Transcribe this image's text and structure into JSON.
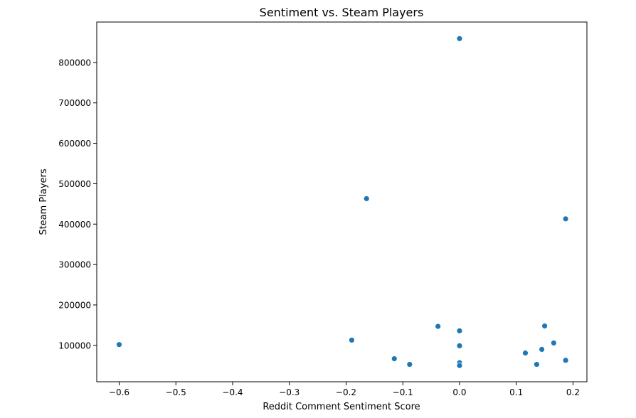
{
  "chart_data": {
    "type": "scatter",
    "title": "Sentiment vs. Steam Players",
    "xlabel": "Reddit Comment Sentiment Score",
    "ylabel": "Steam Players",
    "xlim": [
      -0.6395,
      0.2245
    ],
    "ylim": [
      10000,
      900000
    ],
    "xticks": [
      -0.6,
      -0.5,
      -0.4,
      -0.3,
      -0.2,
      -0.1,
      0.0,
      0.1,
      0.2
    ],
    "xtick_labels": [
      "−0.6",
      "−0.5",
      "−0.4",
      "−0.3",
      "−0.2",
      "−0.1",
      "0.0",
      "0.1",
      "0.2"
    ],
    "yticks": [
      100000,
      200000,
      300000,
      400000,
      500000,
      600000,
      700000,
      800000
    ],
    "ytick_labels": [
      "100000",
      "200000",
      "300000",
      "400000",
      "500000",
      "600000",
      "700000",
      "800000"
    ],
    "grid": false,
    "marker_color": "#1f77b4",
    "points": [
      {
        "x": -0.6,
        "y": 102000
      },
      {
        "x": -0.19,
        "y": 113000
      },
      {
        "x": -0.164,
        "y": 463000
      },
      {
        "x": -0.115,
        "y": 67000
      },
      {
        "x": -0.088,
        "y": 53000
      },
      {
        "x": -0.038,
        "y": 147000
      },
      {
        "x": 0.0,
        "y": 859000
      },
      {
        "x": 0.0,
        "y": 136000
      },
      {
        "x": 0.0,
        "y": 99000
      },
      {
        "x": 0.0,
        "y": 57000
      },
      {
        "x": 0.0,
        "y": 50000
      },
      {
        "x": 0.116,
        "y": 81000
      },
      {
        "x": 0.136,
        "y": 53000
      },
      {
        "x": 0.145,
        "y": 90000
      },
      {
        "x": 0.15,
        "y": 148000
      },
      {
        "x": 0.166,
        "y": 106000
      },
      {
        "x": 0.187,
        "y": 413000
      },
      {
        "x": 0.187,
        "y": 63000
      }
    ]
  }
}
